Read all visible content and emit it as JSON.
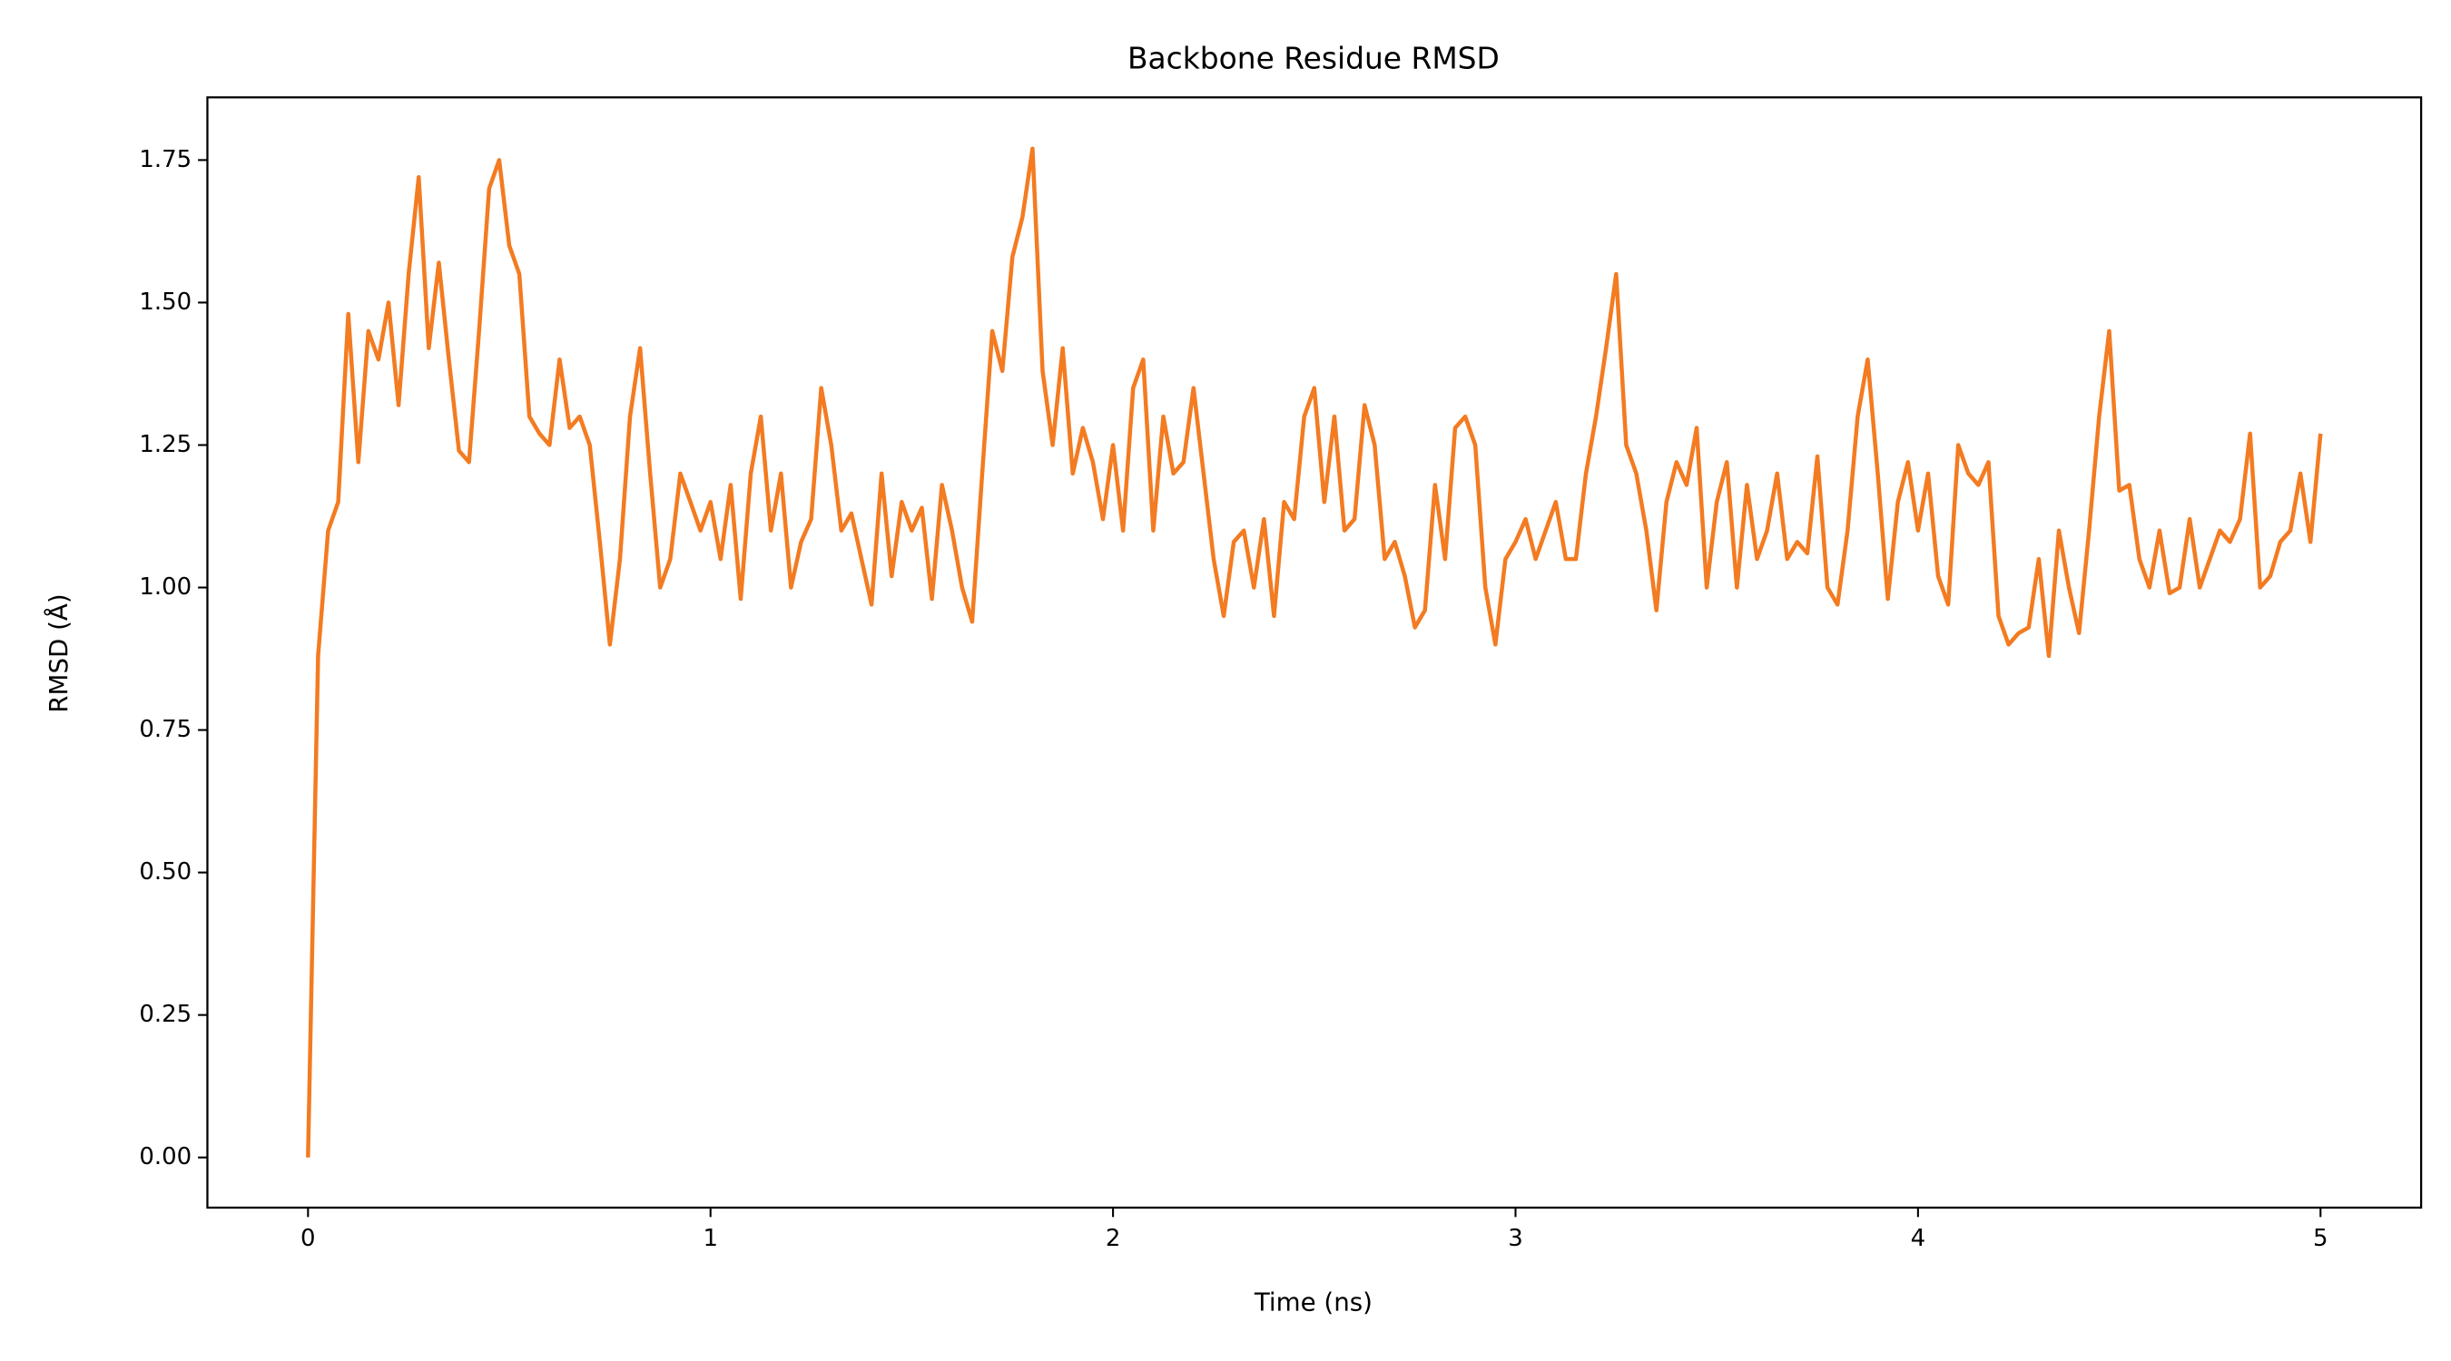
{
  "chart_data": {
    "type": "line",
    "title": "Backbone Residue RMSD",
    "xlabel": "Time (ns)",
    "ylabel": "RMSD (Å)",
    "x": [
      0,
      0.025,
      0.05,
      0.075,
      0.1,
      0.125,
      0.15,
      0.175,
      0.2,
      0.225,
      0.25,
      0.275,
      0.3,
      0.325,
      0.35,
      0.375,
      0.4,
      0.425,
      0.45,
      0.475,
      0.5,
      0.525,
      0.55,
      0.575,
      0.6,
      0.625,
      0.65,
      0.675,
      0.7,
      0.725,
      0.75,
      0.775,
      0.8,
      0.825,
      0.85,
      0.875,
      0.9,
      0.925,
      0.95,
      0.975,
      1,
      1.025,
      1.05,
      1.075,
      1.1,
      1.125,
      1.15,
      1.175,
      1.2,
      1.225,
      1.25,
      1.275,
      1.3,
      1.325,
      1.35,
      1.375,
      1.4,
      1.425,
      1.45,
      1.475,
      1.5,
      1.525,
      1.55,
      1.575,
      1.6,
      1.625,
      1.65,
      1.675,
      1.7,
      1.725,
      1.75,
      1.775,
      1.8,
      1.825,
      1.85,
      1.875,
      1.9,
      1.925,
      1.95,
      1.975,
      2,
      2.025,
      2.05,
      2.075,
      2.1,
      2.125,
      2.15,
      2.175,
      2.2,
      2.225,
      2.25,
      2.275,
      2.3,
      2.325,
      2.35,
      2.375,
      2.4,
      2.425,
      2.45,
      2.475,
      2.5,
      2.525,
      2.55,
      2.575,
      2.6,
      2.625,
      2.65,
      2.675,
      2.7,
      2.725,
      2.75,
      2.775,
      2.8,
      2.825,
      2.85,
      2.875,
      2.9,
      2.925,
      2.95,
      2.975,
      3,
      3.025,
      3.05,
      3.075,
      3.1,
      3.125,
      3.15,
      3.175,
      3.2,
      3.225,
      3.25,
      3.275,
      3.3,
      3.325,
      3.35,
      3.375,
      3.4,
      3.425,
      3.45,
      3.475,
      3.5,
      3.525,
      3.55,
      3.575,
      3.6,
      3.625,
      3.65,
      3.675,
      3.7,
      3.725,
      3.75,
      3.775,
      3.8,
      3.825,
      3.85,
      3.875,
      3.9,
      3.925,
      3.95,
      3.975,
      4,
      4.025,
      4.05,
      4.075,
      4.1,
      4.125,
      4.15,
      4.175,
      4.2,
      4.225,
      4.25,
      4.275,
      4.3,
      4.325,
      4.35,
      4.375,
      4.4,
      4.425,
      4.45,
      4.475,
      4.5,
      4.525,
      4.55,
      4.575,
      4.6,
      4.625,
      4.65,
      4.675,
      4.7,
      4.725,
      4.75,
      4.775,
      4.8,
      4.825,
      4.85,
      4.875,
      4.9,
      4.925,
      4.95,
      4.975,
      5
    ],
    "series": [
      {
        "color": "#f37b21",
        "values": [
          0,
          0.88,
          1.1,
          1.15,
          1.48,
          1.22,
          1.45,
          1.4,
          1.5,
          1.32,
          1.55,
          1.72,
          1.42,
          1.57,
          1.4,
          1.24,
          1.22,
          1.45,
          1.7,
          1.75,
          1.6,
          1.55,
          1.3,
          1.27,
          1.25,
          1.4,
          1.28,
          1.3,
          1.25,
          1.08,
          0.9,
          1.05,
          1.3,
          1.42,
          1.2,
          1.0,
          1.05,
          1.2,
          1.15,
          1.1,
          1.15,
          1.05,
          1.18,
          0.98,
          1.2,
          1.3,
          1.1,
          1.2,
          1.0,
          1.08,
          1.12,
          1.35,
          1.25,
          1.1,
          1.13,
          1.05,
          0.97,
          1.2,
          1.02,
          1.15,
          1.1,
          1.14,
          0.98,
          1.18,
          1.1,
          1.0,
          0.94,
          1.2,
          1.45,
          1.38,
          1.58,
          1.65,
          1.77,
          1.38,
          1.25,
          1.42,
          1.2,
          1.28,
          1.22,
          1.12,
          1.25,
          1.1,
          1.35,
          1.4,
          1.1,
          1.3,
          1.2,
          1.22,
          1.35,
          1.2,
          1.05,
          0.95,
          1.08,
          1.1,
          1.0,
          1.12,
          0.95,
          1.15,
          1.12,
          1.3,
          1.35,
          1.15,
          1.3,
          1.1,
          1.12,
          1.32,
          1.25,
          1.05,
          1.08,
          1.02,
          0.93,
          0.96,
          1.18,
          1.05,
          1.28,
          1.3,
          1.25,
          1.0,
          0.9,
          1.05,
          1.08,
          1.12,
          1.05,
          1.1,
          1.15,
          1.05,
          1.05,
          1.2,
          1.3,
          1.42,
          1.55,
          1.25,
          1.2,
          1.1,
          0.96,
          1.15,
          1.22,
          1.18,
          1.28,
          1.0,
          1.15,
          1.22,
          1.0,
          1.18,
          1.05,
          1.1,
          1.2,
          1.05,
          1.08,
          1.06,
          1.23,
          1.0,
          0.97,
          1.1,
          1.3,
          1.4,
          1.2,
          0.98,
          1.15,
          1.22,
          1.1,
          1.2,
          1.02,
          0.97,
          1.25,
          1.2,
          1.18,
          1.22,
          0.95,
          0.9,
          0.92,
          0.93,
          1.05,
          0.88,
          1.1,
          1.0,
          0.92,
          1.1,
          1.3,
          1.45,
          1.17,
          1.18,
          1.05,
          1.0,
          1.1,
          0.99,
          1.0,
          1.12,
          1.0,
          1.05,
          1.1,
          1.08,
          1.12,
          1.27,
          1.0,
          1.02,
          1.08,
          1.1,
          1.2,
          1.08,
          1.27
        ]
      }
    ],
    "xlim": [
      -0.25,
      5.25
    ],
    "xticks": [
      0,
      1,
      2,
      3,
      4,
      5
    ],
    "ylim": [
      -0.088,
      1.86
    ],
    "yticks": [
      {
        "value": 0,
        "label": "0.00"
      },
      {
        "value": 0.25,
        "label": "0.25"
      },
      {
        "value": 0.5,
        "label": "0.50"
      },
      {
        "value": 0.75,
        "label": "0.75"
      },
      {
        "value": 1,
        "label": "1.00"
      },
      {
        "value": 1.25,
        "label": "1.25"
      },
      {
        "value": 1.5,
        "label": "1.50"
      },
      {
        "value": 1.75,
        "label": "1.75"
      }
    ],
    "grid": false
  }
}
